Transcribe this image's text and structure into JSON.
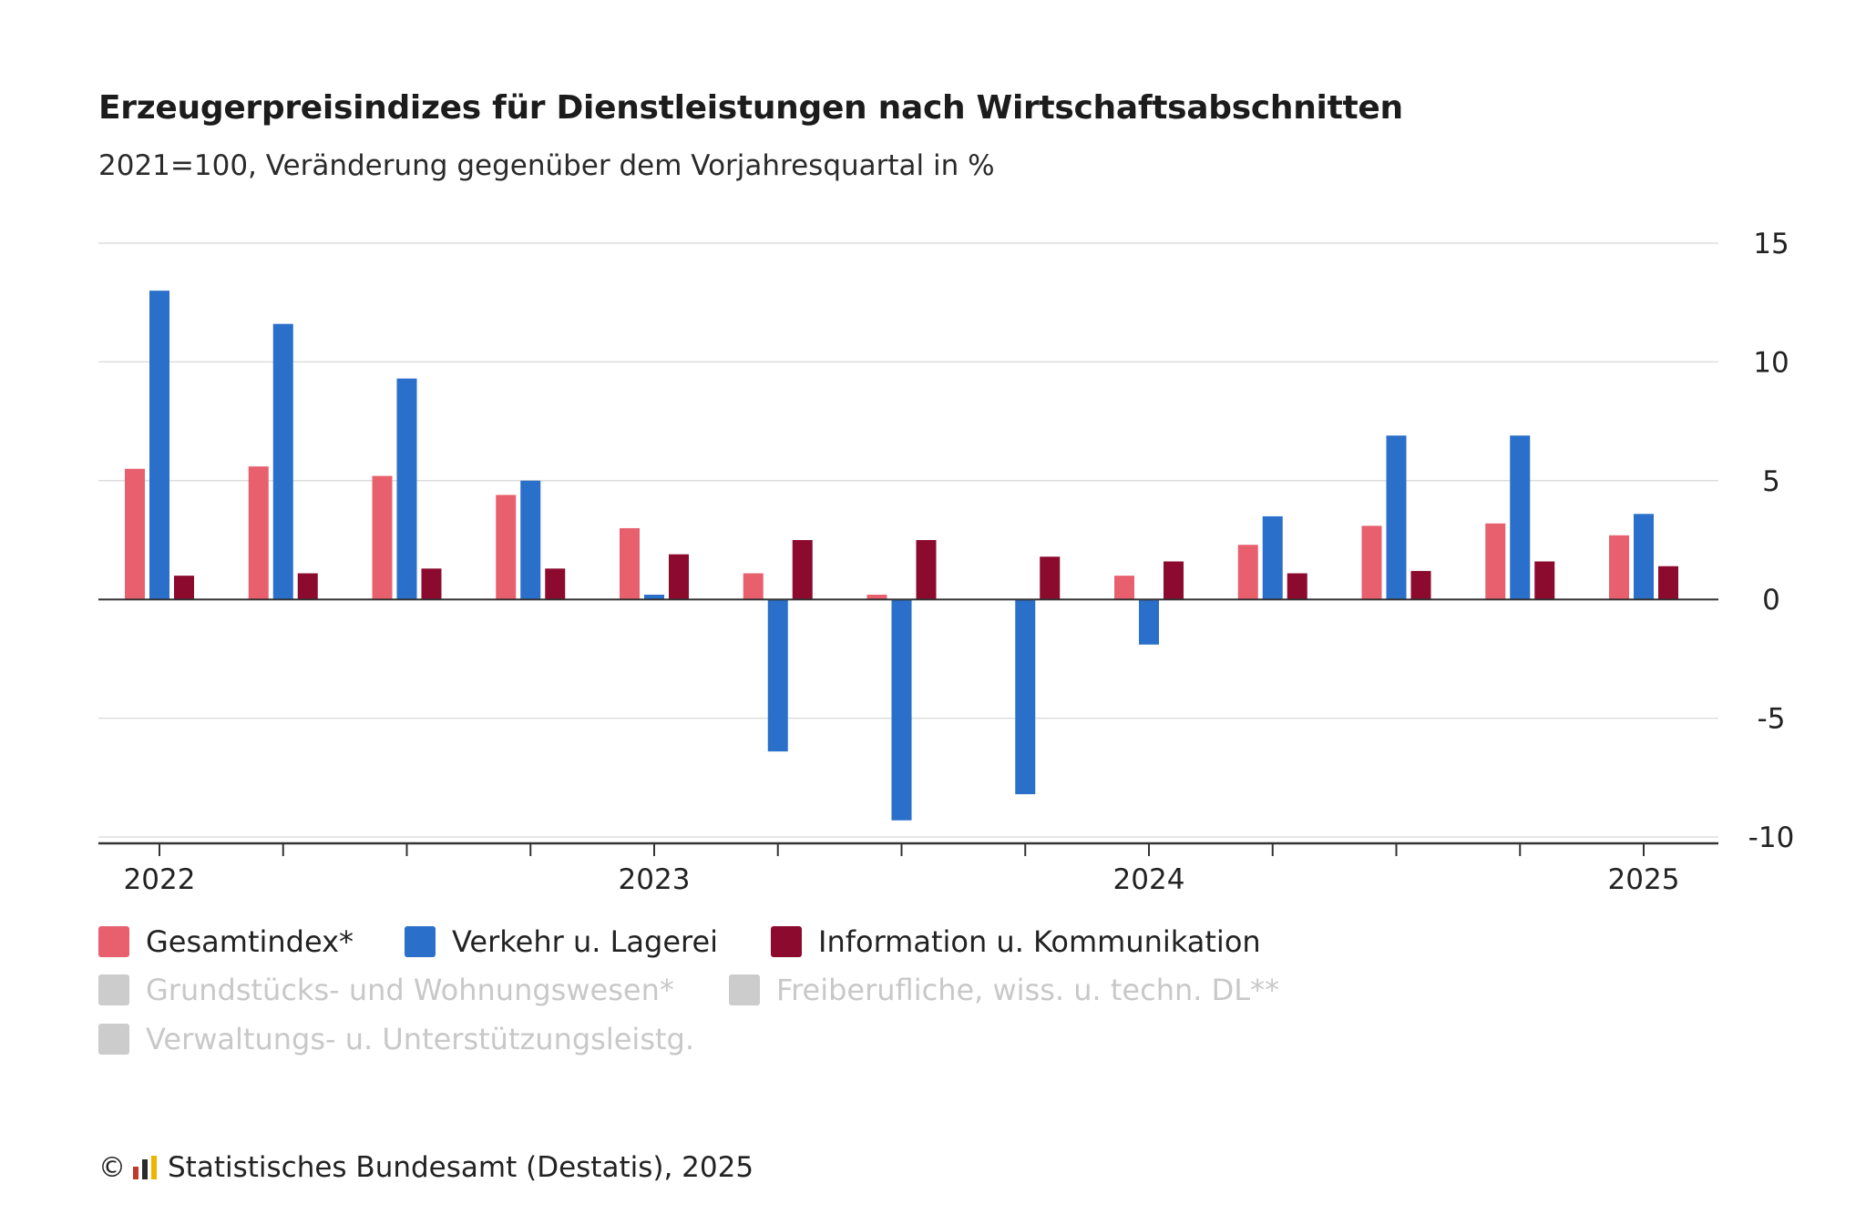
{
  "title": "Erzeugerpreisindizes für Dienstleistungen nach Wirtschaftsabschnitten",
  "subtitle": "2021=100, Veränderung gegenüber dem Vorjahresquartal in %",
  "footer": {
    "copyright_symbol": "©",
    "source": "Statistisches Bundesamt (Destatis), 2025",
    "logo_colors": [
      "#c0392b",
      "#2a2a2a",
      "#f0b400"
    ]
  },
  "legend": {
    "items": [
      {
        "label": "Gesamtindex*",
        "color": "#e8606e",
        "active": true
      },
      {
        "label": "Verkehr u. Lagerei",
        "color": "#2a6fc9",
        "active": true
      },
      {
        "label": "Information u. Kommunikation",
        "color": "#8b0a2e",
        "active": true
      },
      {
        "label": "Grundstücks- und Wohnungswesen*",
        "color": "#cccccc",
        "active": false
      },
      {
        "label": "Freiberufliche, wiss. u. techn. DL**",
        "color": "#cccccc",
        "active": false
      },
      {
        "label": "Verwaltungs- u. Unterstützungsleistg.",
        "color": "#cccccc",
        "active": false
      }
    ]
  },
  "chart_data": {
    "type": "bar",
    "title": "Erzeugerpreisindizes für Dienstleistungen nach Wirtschaftsabschnitten",
    "subtitle": "2021=100, Veränderung gegenüber dem Vorjahresquartal in %",
    "categories": [
      "2022 Q1",
      "2022 Q2",
      "2022 Q3",
      "2022 Q4",
      "2023 Q1",
      "2023 Q2",
      "2023 Q3",
      "2023 Q4",
      "2024 Q1",
      "2024 Q2",
      "2024 Q3",
      "2024 Q4",
      "2025 Q1"
    ],
    "x_tick_labels": [
      {
        "index": 0,
        "label": "2022"
      },
      {
        "index": 4,
        "label": "2023"
      },
      {
        "index": 8,
        "label": "2024"
      },
      {
        "index": 12,
        "label": "2025"
      }
    ],
    "series": [
      {
        "name": "Gesamtindex*",
        "color": "#e8606e",
        "values": [
          5.5,
          5.6,
          5.2,
          4.4,
          3.0,
          1.1,
          0.2,
          0.0,
          1.0,
          2.3,
          3.1,
          3.2,
          2.7
        ]
      },
      {
        "name": "Verkehr u. Lagerei",
        "color": "#2a6fc9",
        "values": [
          13.0,
          11.6,
          9.3,
          5.0,
          0.2,
          -6.4,
          -9.3,
          -8.2,
          -1.9,
          3.5,
          6.9,
          6.9,
          3.6
        ]
      },
      {
        "name": "Information u. Kommunikation",
        "color": "#8b0a2e",
        "values": [
          1.0,
          1.1,
          1.3,
          1.3,
          1.9,
          2.5,
          2.5,
          1.8,
          1.6,
          1.1,
          1.2,
          1.6,
          1.4
        ]
      }
    ],
    "y_ticks": [
      15,
      10,
      5,
      0,
      -5,
      -10
    ],
    "ylim": [
      -10,
      15
    ],
    "grid": true,
    "y_axis_position": "right",
    "legend_position": "bottom"
  }
}
